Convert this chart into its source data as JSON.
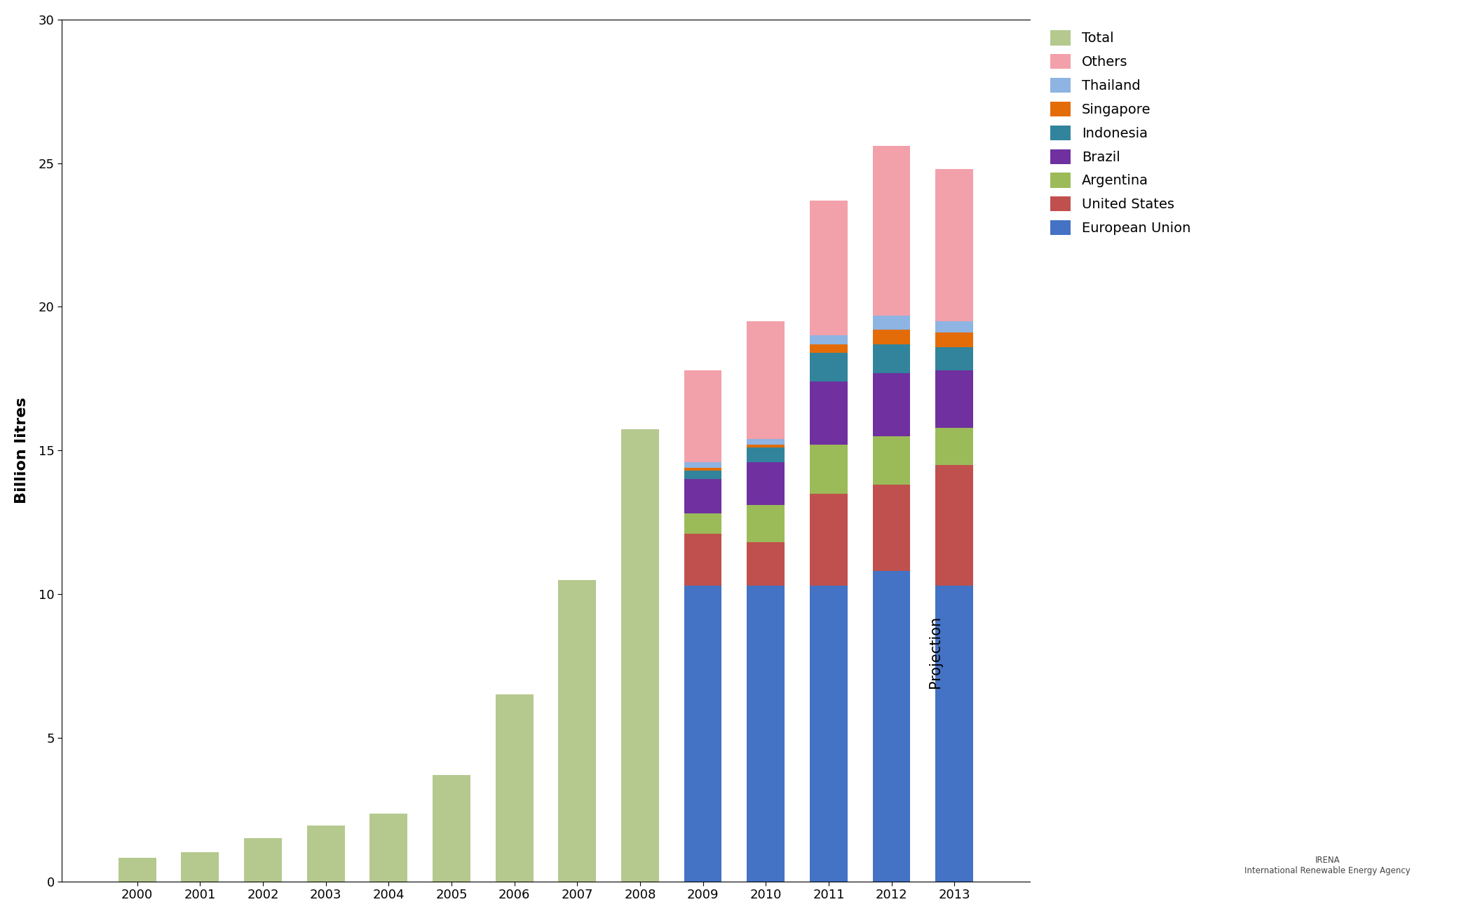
{
  "years_total": [
    2000,
    2001,
    2002,
    2003,
    2004,
    2005,
    2006,
    2007,
    2008
  ],
  "total_values": [
    0.82,
    1.02,
    1.5,
    1.95,
    2.35,
    3.7,
    6.5,
    10.5,
    15.75
  ],
  "years_stacked": [
    2009,
    2010,
    2011,
    2012,
    2013
  ],
  "stacked_data": {
    "European Union": [
      10.3,
      10.3,
      10.3,
      10.8,
      10.3
    ],
    "United States": [
      1.8,
      1.5,
      3.2,
      3.0,
      4.2
    ],
    "Argentina": [
      0.7,
      1.3,
      1.7,
      1.7,
      1.3
    ],
    "Brazil": [
      1.2,
      1.5,
      2.2,
      2.2,
      2.0
    ],
    "Indonesia": [
      0.3,
      0.5,
      1.0,
      1.0,
      0.8
    ],
    "Singapore": [
      0.1,
      0.1,
      0.3,
      0.5,
      0.5
    ],
    "Thailand": [
      0.2,
      0.2,
      0.3,
      0.5,
      0.4
    ],
    "Others": [
      3.2,
      4.1,
      4.7,
      5.9,
      5.3
    ]
  },
  "colors": {
    "Total": "#b5c98e",
    "European Union": "#4472c4",
    "United States": "#c0504d",
    "Argentina": "#9bbb59",
    "Brazil": "#7030a0",
    "Indonesia": "#31849b",
    "Singapore": "#e36c09",
    "Thailand": "#8db4e2",
    "Others": "#f2a0aa"
  },
  "ylabel": "Billion litres",
  "ylim": [
    0,
    30
  ],
  "yticks": [
    0,
    5,
    10,
    15,
    20,
    25,
    30
  ],
  "projection_year": 2013,
  "projection_label": "Projection",
  "legend_order": [
    "Total",
    "Others",
    "Thailand",
    "Singapore",
    "Indonesia",
    "Brazil",
    "Argentina",
    "United States",
    "European Union"
  ],
  "background_color": "#ffffff",
  "plot_background": "#ffffff",
  "bar_width": 0.6
}
